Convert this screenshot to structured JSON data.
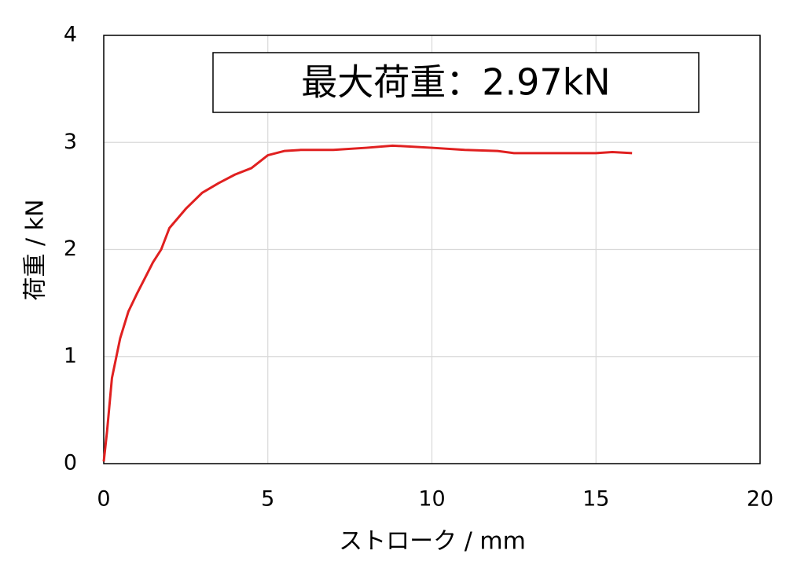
{
  "chart_data": {
    "type": "line",
    "annotation": "最大荷重：2.97kN",
    "x_label": "ストローク / mm",
    "y_label": "荷重 / kN",
    "xlim": [
      0,
      20
    ],
    "xticks": [
      0,
      5,
      10,
      15,
      20
    ],
    "ylim": [
      0,
      4
    ],
    "yticks": [
      0,
      1,
      2,
      3,
      4
    ],
    "grid": true,
    "series": [
      {
        "color": "#e02020",
        "x": [
          0,
          0.1,
          0.25,
          0.5,
          0.75,
          1,
          1.25,
          1.5,
          1.75,
          2,
          2.5,
          3,
          3.5,
          4,
          4.5,
          5,
          5.5,
          6,
          7,
          8,
          8.8,
          10,
          11,
          12,
          12.5,
          13,
          14,
          15,
          15.5,
          16.1
        ],
        "values": [
          0.02,
          0.3,
          0.8,
          1.17,
          1.42,
          1.58,
          1.73,
          1.88,
          2.0,
          2.2,
          2.38,
          2.53,
          2.62,
          2.7,
          2.76,
          2.88,
          2.92,
          2.93,
          2.93,
          2.95,
          2.97,
          2.95,
          2.93,
          2.92,
          2.9,
          2.9,
          2.9,
          2.9,
          2.91,
          2.9
        ]
      }
    ]
  }
}
